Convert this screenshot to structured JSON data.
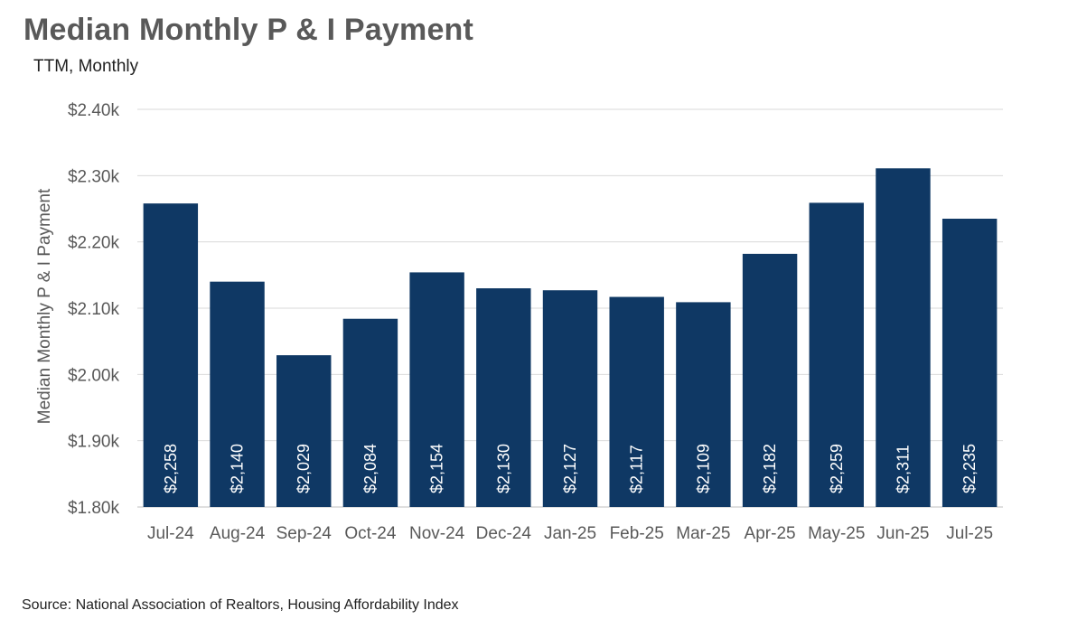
{
  "header": {
    "title": "Median Monthly P & I Payment",
    "subtitle": "TTM, Monthly"
  },
  "footer": {
    "source": "Source: National Association of Realtors, Housing Affordability Index"
  },
  "chart_data": {
    "type": "bar",
    "title": "Median Monthly P & I Payment",
    "subtitle": "TTM, Monthly",
    "xlabel": "",
    "ylabel": "Median Monthly P & I Payment",
    "ylim": [
      1800,
      2400
    ],
    "yticks": [
      1800,
      1900,
      2000,
      2100,
      2200,
      2300,
      2400
    ],
    "ytick_labels": [
      "$1.80k",
      "$1.90k",
      "$2.00k",
      "$2.10k",
      "$2.20k",
      "$2.30k",
      "$2.40k"
    ],
    "grid": true,
    "legend": "none",
    "bar_color": "#0f3864",
    "categories": [
      "Jul-24",
      "Aug-24",
      "Sep-24",
      "Oct-24",
      "Nov-24",
      "Dec-24",
      "Jan-25",
      "Feb-25",
      "Mar-25",
      "Apr-25",
      "May-25",
      "Jun-25",
      "Jul-25"
    ],
    "values": [
      2258,
      2140,
      2029,
      2084,
      2154,
      2130,
      2127,
      2117,
      2109,
      2182,
      2259,
      2311,
      2235
    ],
    "data_labels": [
      "$2,258",
      "$2,140",
      "$2,029",
      "$2,084",
      "$2,154",
      "$2,130",
      "$2,127",
      "$2,117",
      "$2,109",
      "$2,182",
      "$2,259",
      "$2,311",
      "$2,235"
    ]
  }
}
